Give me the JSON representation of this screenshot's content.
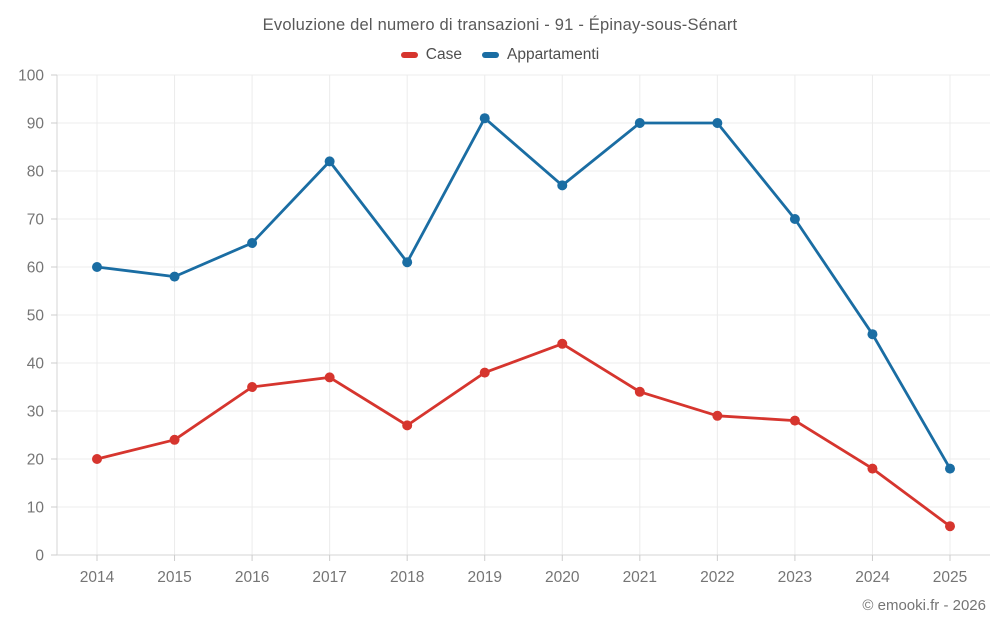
{
  "chart": {
    "title": "Evoluzione del numero di transazioni - 91 - Épinay-sous-Sénart",
    "footer_credit": "© emooki.fr - 2026"
  },
  "chart_data": {
    "type": "line",
    "title": "Evoluzione del numero di transazioni - 91 - Épinay-sous-Sénart",
    "categories": [
      "2014",
      "2015",
      "2016",
      "2017",
      "2018",
      "2019",
      "2020",
      "2021",
      "2022",
      "2023",
      "2024",
      "2025"
    ],
    "series": [
      {
        "name": "Case",
        "color": "#d6352e",
        "values": [
          20,
          24,
          35,
          37,
          27,
          38,
          44,
          34,
          29,
          28,
          18,
          6
        ]
      },
      {
        "name": "Appartamenti",
        "color": "#1a6da3",
        "values": [
          60,
          58,
          65,
          82,
          61,
          91,
          77,
          90,
          90,
          70,
          46,
          18
        ]
      }
    ],
    "xlabel": "",
    "ylabel": "",
    "ylim": [
      0,
      100
    ],
    "ytick_interval": 10,
    "grid": true,
    "legend_position": "top",
    "colors": {
      "grid_line": "#ececec",
      "axis_line": "#d6d6d6",
      "tick_mark": "#cccccc",
      "tick_label": "#757575",
      "title_text": "#595959",
      "legend_text": "#4f4f4f",
      "background": "#ffffff"
    }
  }
}
